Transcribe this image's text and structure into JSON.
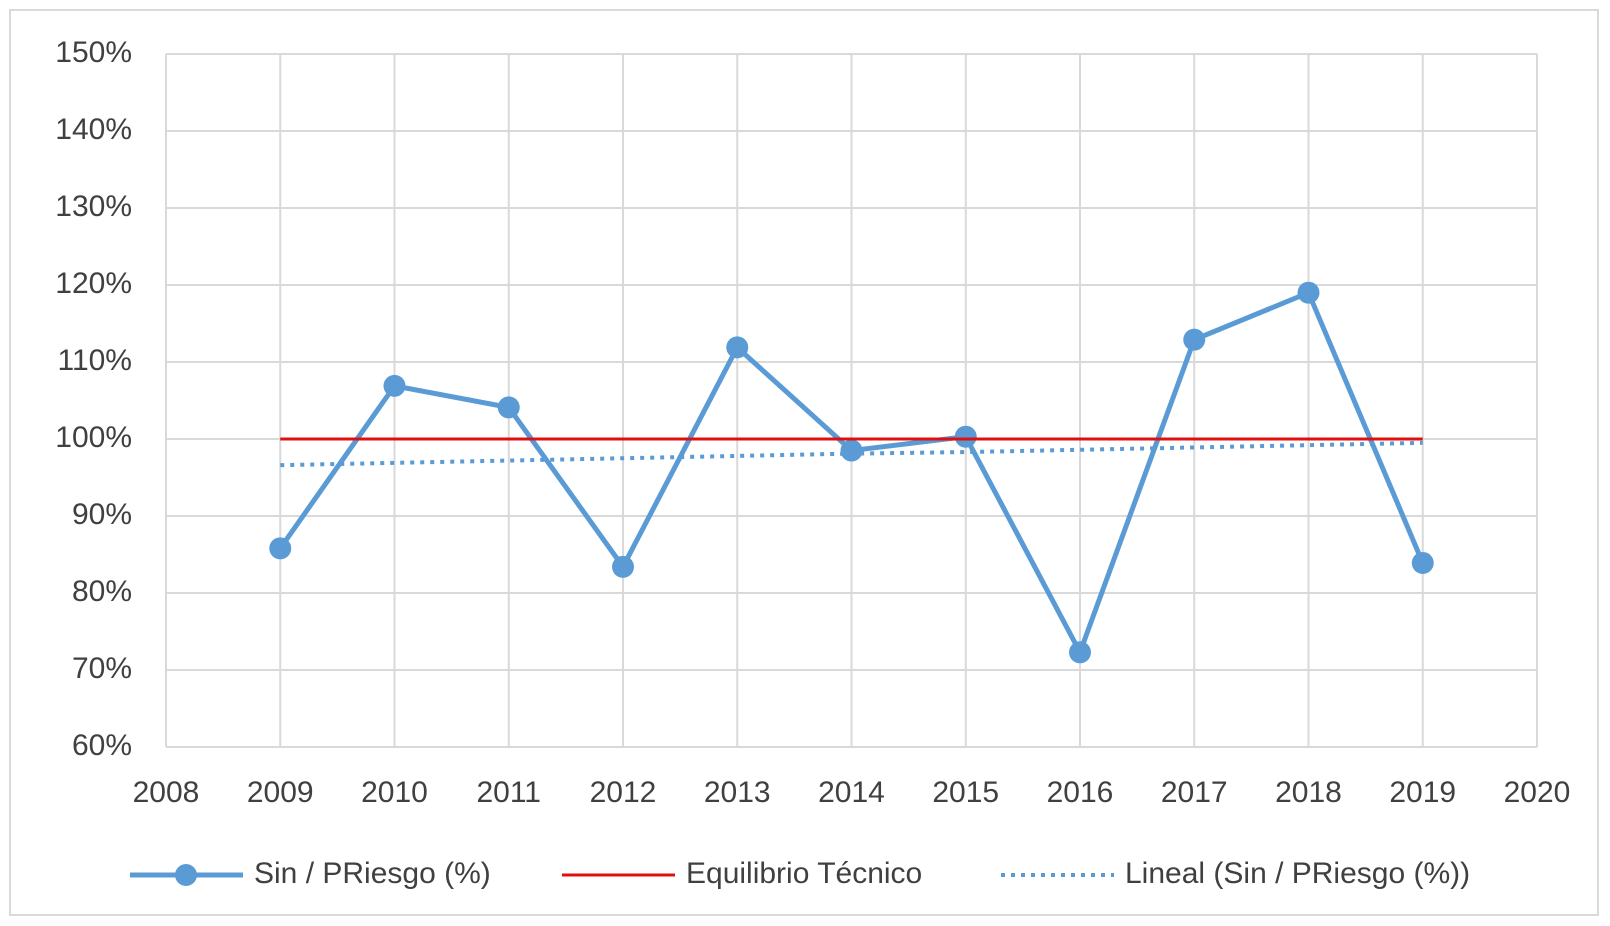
{
  "chart_data": {
    "type": "line",
    "x": [
      2009,
      2010,
      2011,
      2012,
      2013,
      2014,
      2015,
      2016,
      2017,
      2018,
      2019
    ],
    "series": [
      {
        "name": "Sin / PRiesgo (%)",
        "color": "#5b9bd5",
        "marker": true,
        "dash": "solid",
        "values": [
          85.8,
          106.9,
          104.1,
          83.4,
          111.9,
          98.5,
          100.3,
          72.3,
          112.9,
          119,
          83.9
        ]
      },
      {
        "name": "Equilibrio Técnico",
        "color": "#e01010",
        "marker": false,
        "dash": "solid",
        "values": [
          100,
          100,
          100,
          100,
          100,
          100,
          100,
          100,
          100,
          100,
          100
        ]
      },
      {
        "name": "Lineal (Sin / PRiesgo (%))",
        "color": "#5b9bd5",
        "marker": false,
        "dash": "dotted",
        "values": [
          96.6,
          96.9,
          97.2,
          97.5,
          97.8,
          98.1,
          98.3,
          98.6,
          98.9,
          99.2,
          99.5
        ]
      }
    ],
    "xlim": [
      2008,
      2020
    ],
    "xticks": [
      2008,
      2009,
      2010,
      2011,
      2012,
      2013,
      2014,
      2015,
      2016,
      2017,
      2018,
      2019,
      2020
    ],
    "ylim": [
      60,
      150
    ],
    "yticks": [
      {
        "value": 60,
        "label": "60%"
      },
      {
        "value": 70,
        "label": "70%"
      },
      {
        "value": 80,
        "label": "80%"
      },
      {
        "value": 90,
        "label": "90%"
      },
      {
        "value": 100,
        "label": "100%"
      },
      {
        "value": 110,
        "label": "110%"
      },
      {
        "value": 120,
        "label": "120%"
      },
      {
        "value": 130,
        "label": "130%"
      },
      {
        "value": 140,
        "label": "140%"
      },
      {
        "value": 150,
        "label": "150%"
      }
    ],
    "grid": true,
    "legend": "bottom"
  }
}
